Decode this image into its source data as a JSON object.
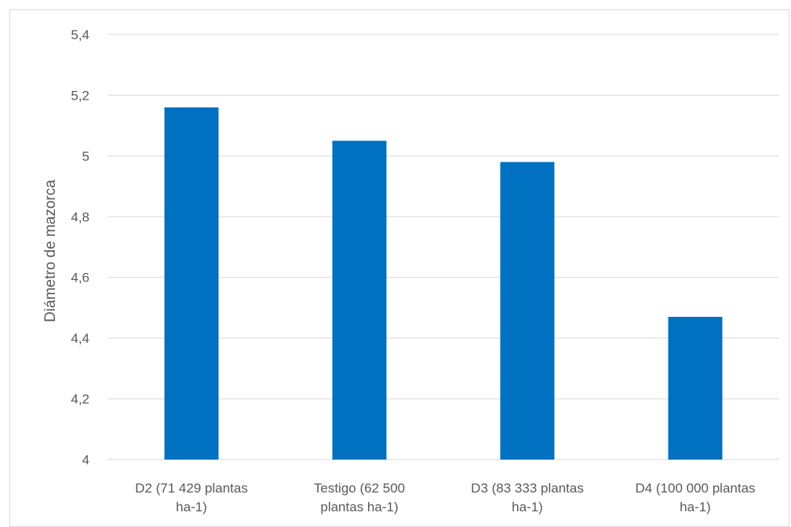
{
  "chart_data": {
    "type": "bar",
    "categories": [
      [
        "D2 (71 429 plantas",
        "ha-1)"
      ],
      [
        "Testigo (62 500",
        "plantas ha-1)"
      ],
      [
        "D3 (83 333 plantas",
        "ha-1)"
      ],
      [
        "D4 (100 000 plantas",
        "ha-1)"
      ]
    ],
    "values": [
      5.16,
      5.05,
      4.98,
      4.47
    ],
    "ylabel": "Diámetro de mazorca",
    "xlabel": "",
    "ylim": [
      4,
      5.4
    ],
    "yticks": [
      "4",
      "4,2",
      "4,4",
      "4,6",
      "4,8",
      "5",
      "5,2",
      "5,4"
    ],
    "yticks_values": [
      4,
      4.2,
      4.4,
      4.6,
      4.8,
      5,
      5.2,
      5.4
    ],
    "grid": true,
    "bar_color": "#0070C0"
  }
}
